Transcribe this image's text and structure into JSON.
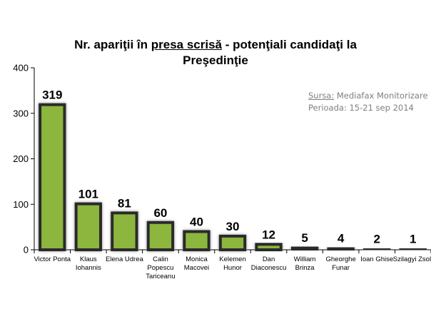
{
  "chart_data": {
    "type": "bar",
    "title": {
      "line1_prefix": "Nr. apariţii în ",
      "line1_underlined": "presa scrisă",
      "line1_suffix": "  - potenţiali candidaţi la",
      "line2": "Preşedinţie"
    },
    "source_note": {
      "source_label": "Sursa:",
      "source_value": " Mediafax Monitorizare",
      "period": "Perioada: 15-21 sep 2014"
    },
    "categories": [
      [
        "Victor Ponta"
      ],
      [
        "Klaus",
        "Iohannis"
      ],
      [
        "Elena Udrea"
      ],
      [
        "Calin",
        "Popescu",
        "Tariceanu"
      ],
      [
        "Monica",
        "Macovei"
      ],
      [
        "Kelemen",
        "Hunor"
      ],
      [
        "Dan",
        "Diaconescu"
      ],
      [
        "William",
        "Brinza"
      ],
      [
        "Gheorghe",
        "Funar"
      ],
      [
        "Ioan Ghise"
      ],
      [
        "Szilagyi Zsolt"
      ]
    ],
    "values": [
      319,
      101,
      81,
      60,
      40,
      30,
      12,
      5,
      4,
      2,
      1
    ],
    "data_labels": [
      "319",
      "101",
      "81",
      "60",
      "40",
      "30",
      "12",
      "5",
      "4",
      "2",
      "1"
    ],
    "yticks": [
      {
        "value": 0,
        "label": "0"
      },
      {
        "value": 100,
        "label": "100"
      },
      {
        "value": 200,
        "label": "200"
      },
      {
        "value": 300,
        "label": "300"
      },
      {
        "value": 400,
        "label": "400"
      }
    ],
    "ylim": [
      0,
      400
    ],
    "grid": false,
    "legend": "none",
    "colors": {
      "bar_fill": "#8cb63c",
      "bar_border": "#2b2b2b",
      "bar_glow": "#9a9a9a",
      "axis": "#000000"
    }
  }
}
